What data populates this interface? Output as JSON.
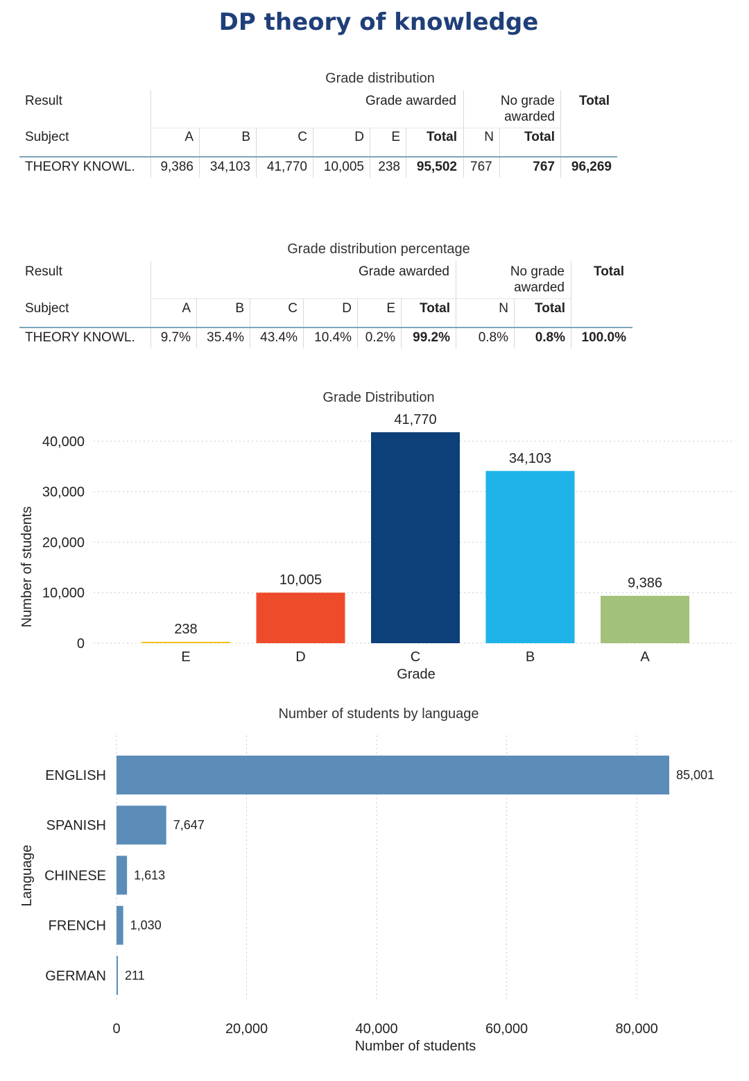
{
  "title": "DP theory of knowledge",
  "table_counts": {
    "caption": "Grade distribution",
    "result_label": "Result",
    "subject_label": "Subject",
    "grade_awarded": "Grade awarded",
    "no_grade_line1": "No grade",
    "no_grade_line2": "awarded",
    "total_header": "Total",
    "columns": [
      "A",
      "B",
      "C",
      "D",
      "E",
      "Total",
      "N",
      "Total"
    ],
    "row": {
      "subject": "THEORY KNOWL.",
      "values": [
        "9,386",
        "34,103",
        "41,770",
        "10,005",
        "238",
        "95,502",
        "767",
        "767",
        "96,269"
      ]
    }
  },
  "table_percent": {
    "caption": "Grade distribution percentage",
    "result_label": "Result",
    "subject_label": "Subject",
    "grade_awarded": "Grade awarded",
    "no_grade_line1": "No grade",
    "no_grade_line2": "awarded",
    "total_header": "Total",
    "columns": [
      "A",
      "B",
      "C",
      "D",
      "E",
      "Total",
      "N",
      "Total"
    ],
    "row": {
      "subject": "THEORY KNOWL.",
      "values": [
        "9.7%",
        "35.4%",
        "43.4%",
        "10.4%",
        "0.2%",
        "99.2%",
        "0.8%",
        "0.8%",
        "100.0%"
      ]
    }
  },
  "chart_data": [
    {
      "type": "bar",
      "title": "Grade Distribution",
      "xlabel": "Grade",
      "ylabel": "Number of students",
      "categories": [
        "E",
        "D",
        "C",
        "B",
        "A"
      ],
      "values": [
        238,
        10005,
        41770,
        34103,
        9386
      ],
      "value_labels": [
        "238",
        "10,005",
        "41,770",
        "34,103",
        "9,386"
      ],
      "colors": [
        "#f0c419",
        "#ee4b2b",
        "#0d3f78",
        "#1db3e8",
        "#a3c17a"
      ],
      "ylim": [
        0,
        43000
      ],
      "yticks": [
        0,
        10000,
        20000,
        30000,
        40000
      ],
      "ytick_labels": [
        "0",
        "10,000",
        "20,000",
        "30,000",
        "40,000"
      ],
      "grid": true
    },
    {
      "type": "bar",
      "orientation": "horizontal",
      "title": "Number of students by language",
      "xlabel": "Number of students",
      "ylabel": "Language",
      "categories": [
        "ENGLISH",
        "SPANISH",
        "CHINESE",
        "FRENCH",
        "GERMAN"
      ],
      "values": [
        85001,
        7647,
        1613,
        1030,
        211
      ],
      "value_labels": [
        "85,001",
        "7,647",
        "1,613",
        "1,030",
        "211"
      ],
      "color": "#5b8db8",
      "xlim": [
        0,
        93000
      ],
      "xticks": [
        0,
        20000,
        40000,
        60000,
        80000
      ],
      "xtick_labels": [
        "0",
        "20,000",
        "40,000",
        "60,000",
        "80,000"
      ],
      "grid": true
    }
  ]
}
